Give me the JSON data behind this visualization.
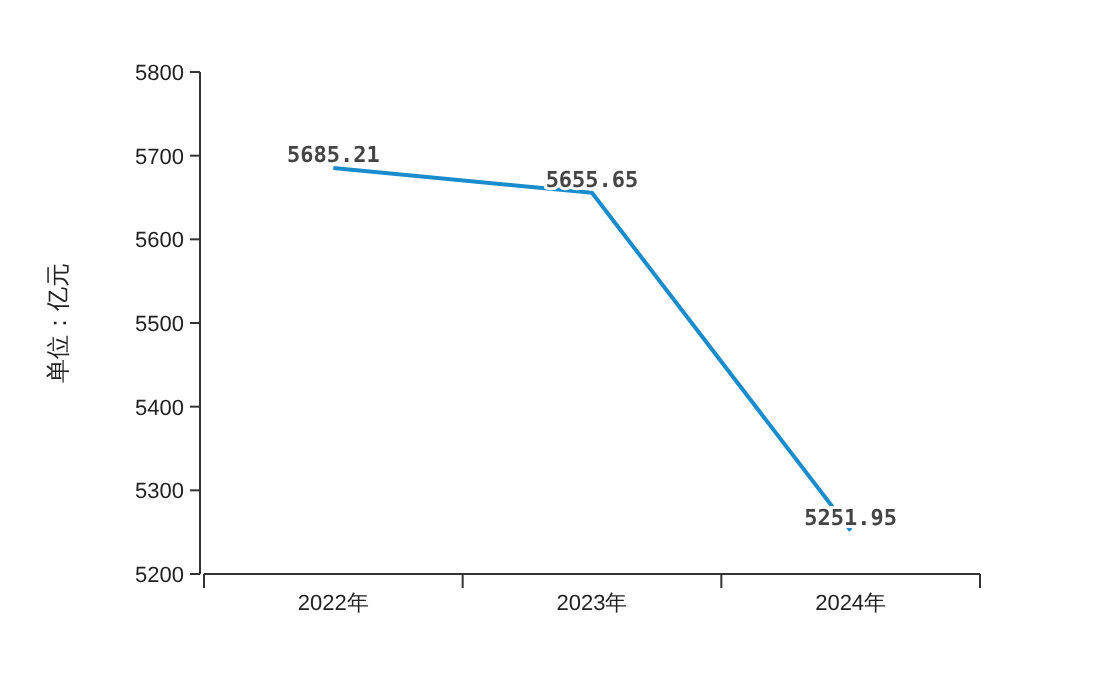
{
  "chart_data": {
    "type": "line",
    "ylabel": "单位：亿元",
    "categories": [
      "2022年",
      "2023年",
      "2024年"
    ],
    "series": [
      {
        "color": "#1a8ccc",
        "values": [
          5685.21,
          5655.65,
          5251.95
        ]
      }
    ],
    "ylim": [
      5200,
      5800
    ],
    "yticks": [
      5200,
      5300,
      5400,
      5500,
      5600,
      5700,
      5800
    ],
    "data_labels": true,
    "marker": "none"
  }
}
